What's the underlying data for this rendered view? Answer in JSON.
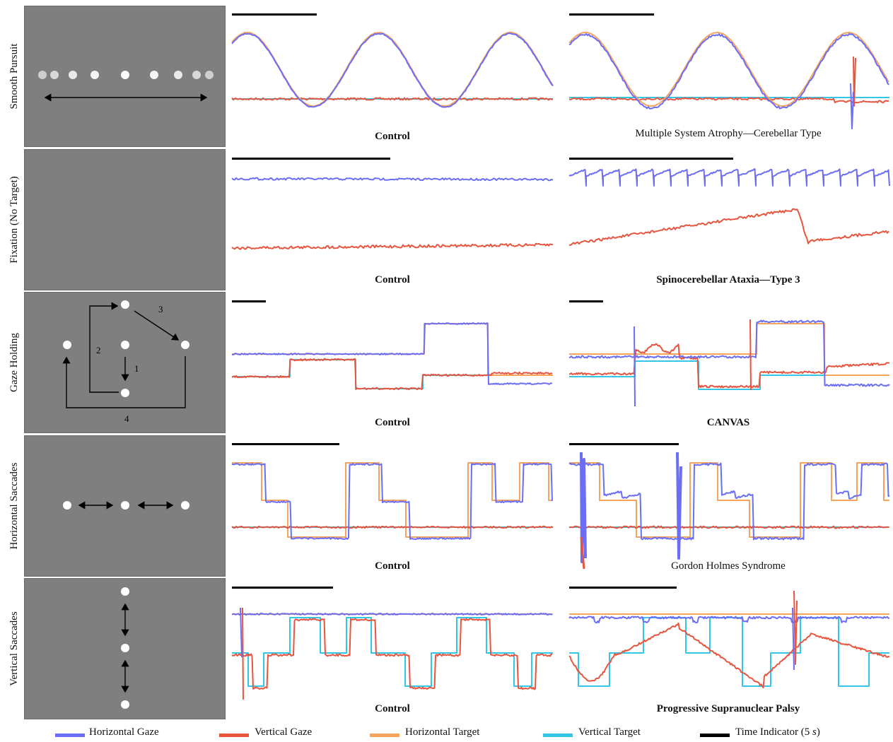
{
  "rows": [
    {
      "label": "Smooth Pursuit",
      "left_caption": "Control",
      "right_caption": "Multiple System Atrophy—Cerebellar Type",
      "right_bold": false
    },
    {
      "label": "Fixation (No Target)",
      "left_caption": "Control",
      "right_caption": "Spinocerebellar Ataxia—Type 3",
      "right_bold": true
    },
    {
      "label": "Gaze Holding",
      "left_caption": "Control",
      "right_caption": "CANVAS",
      "right_bold": true
    },
    {
      "label": "Horizontal Saccades",
      "left_caption": "Control",
      "right_caption": "Gordon Holmes Syndrome",
      "right_bold": false
    },
    {
      "label": "Vertical Saccades",
      "left_caption": "Control",
      "right_caption": "Progressive Supranuclear Palsy",
      "right_bold": true
    }
  ],
  "gaze_holding_steps": [
    "1",
    "2",
    "3",
    "4"
  ],
  "legend": [
    {
      "name": "Horizontal Gaze",
      "color": "#6b6ef5"
    },
    {
      "name": "Vertical Gaze",
      "color": "#e8553f"
    },
    {
      "name": "Horizontal Target",
      "color": "#f6a35c"
    },
    {
      "name": "Vertical Target",
      "color": "#33c6e6"
    },
    {
      "name": "Time Indicator (5 s)",
      "color": "#000000"
    }
  ],
  "chart_data": {
    "type": "line",
    "time_indicator_seconds": 5,
    "series_names": [
      "Horizontal Gaze",
      "Vertical Gaze",
      "Horizontal Target",
      "Vertical Target"
    ]
  }
}
